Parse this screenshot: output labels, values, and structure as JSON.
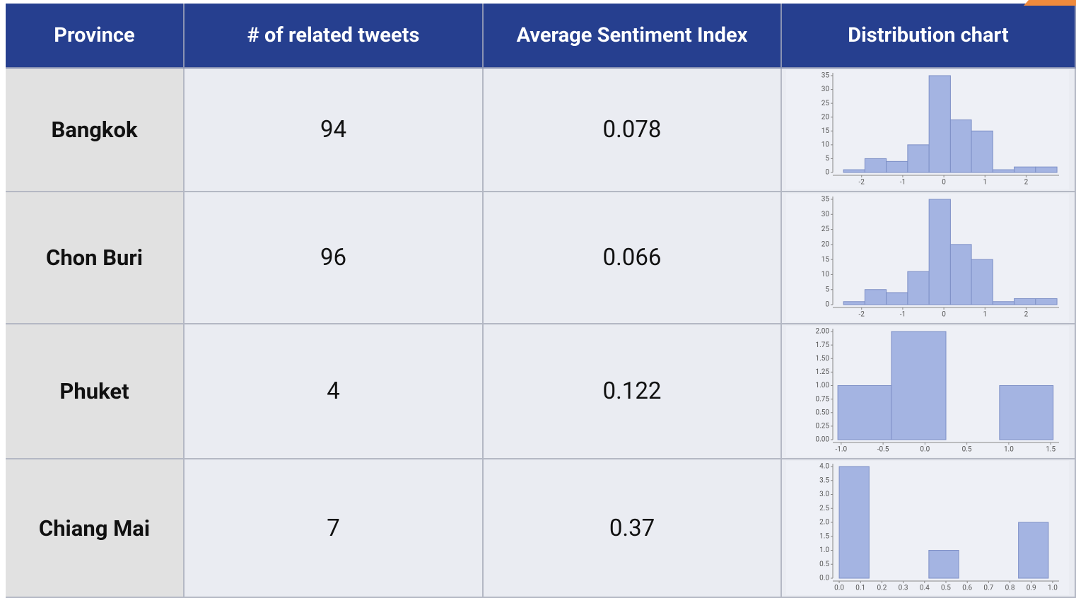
{
  "table": {
    "header": [
      "Province",
      "# of related tweets",
      "Average Sentiment Index",
      "Distribution chart"
    ],
    "rows": [
      {
        "province": "Bangkok",
        "tweets": 94,
        "sentiment": 0.078,
        "chart": {
          "type": "histogram",
          "bins": [
            -2.44,
            -1.92,
            -1.4,
            -0.88,
            -0.36,
            0.16,
            0.67,
            1.19,
            1.71,
            2.23,
            2.75
          ],
          "counts": [
            1,
            5,
            4,
            10,
            35,
            19,
            15,
            1,
            2,
            2
          ],
          "xlim": [
            -2.7,
            2.8
          ],
          "xticks": [
            -2,
            -1,
            0,
            1,
            2
          ],
          "ylim": [
            0,
            35
          ],
          "yticks": [
            0,
            5,
            10,
            15,
            20,
            25,
            30,
            35
          ],
          "color": "#a4b4e2"
        }
      },
      {
        "province": "Chon Buri",
        "tweets": 96,
        "sentiment": 0.066,
        "chart": {
          "type": "histogram",
          "bins": [
            -2.44,
            -1.92,
            -1.4,
            -0.88,
            -0.36,
            0.16,
            0.67,
            1.19,
            1.71,
            2.23,
            2.75
          ],
          "counts": [
            1,
            5,
            4,
            11,
            35,
            20,
            15,
            1,
            2,
            2
          ],
          "xlim": [
            -2.7,
            2.8
          ],
          "xticks": [
            -2,
            -1,
            0,
            1,
            2
          ],
          "ylim": [
            0,
            35
          ],
          "yticks": [
            0,
            5,
            10,
            15,
            20,
            25,
            30,
            35
          ],
          "color": "#a4b4e2"
        }
      },
      {
        "province": "Phuket",
        "tweets": 4,
        "sentiment": 0.122,
        "chart": {
          "type": "histogram",
          "bins": [
            -1.04,
            -0.4,
            0.25,
            0.89,
            1.53
          ],
          "counts": [
            1,
            2,
            0,
            1
          ],
          "xlim": [
            -1.1,
            1.6
          ],
          "xticks": [
            {
              "value": -1,
              "label": "-1.0"
            },
            -0.5,
            {
              "value": 0,
              "label": "0.0"
            },
            0.5,
            {
              "value": 1,
              "label": "1.0"
            },
            1.5
          ],
          "ylim": [
            0,
            2
          ],
          "yticks": [
            {
              "value": 0,
              "label": "0.00"
            },
            {
              "value": 0.25,
              "label": "0.25"
            },
            {
              "value": 0.5,
              "label": "0.50"
            },
            {
              "value": 0.75,
              "label": "0.75"
            },
            {
              "value": 1,
              "label": "1.00"
            },
            {
              "value": 1.25,
              "label": "1.25"
            },
            {
              "value": 1.5,
              "label": "1.50"
            },
            {
              "value": 1.75,
              "label": "1.75"
            },
            {
              "value": 2,
              "label": "2.00"
            }
          ],
          "color": "#a4b4e2"
        }
      },
      {
        "province": "Chiang Mai",
        "tweets": 7,
        "sentiment": 0.37,
        "chart": {
          "type": "histogram",
          "bins": [
            0,
            0.14,
            0.28,
            0.42,
            0.56,
            0.7,
            0.84,
            0.98
          ],
          "counts": [
            4,
            0,
            0,
            1,
            0,
            0,
            2
          ],
          "xlim": [
            -0.03,
            1.03
          ],
          "xticks": [
            {
              "value": 0,
              "label": "0.0"
            },
            0.1,
            0.2,
            0.3,
            0.4,
            0.5,
            0.6,
            0.7,
            0.8,
            0.9,
            {
              "value": 1,
              "label": "1.0"
            }
          ],
          "ylim": [
            0,
            4
          ],
          "yticks": [
            {
              "value": 0,
              "label": "0.0"
            },
            0.5,
            {
              "value": 1,
              "label": "1.0"
            },
            1.5,
            {
              "value": 2,
              "label": "2.0"
            },
            2.5,
            {
              "value": 3,
              "label": "3.0"
            },
            3.5,
            {
              "value": 4,
              "label": "4.0"
            }
          ],
          "color": "#a4b4e2"
        }
      }
    ]
  }
}
